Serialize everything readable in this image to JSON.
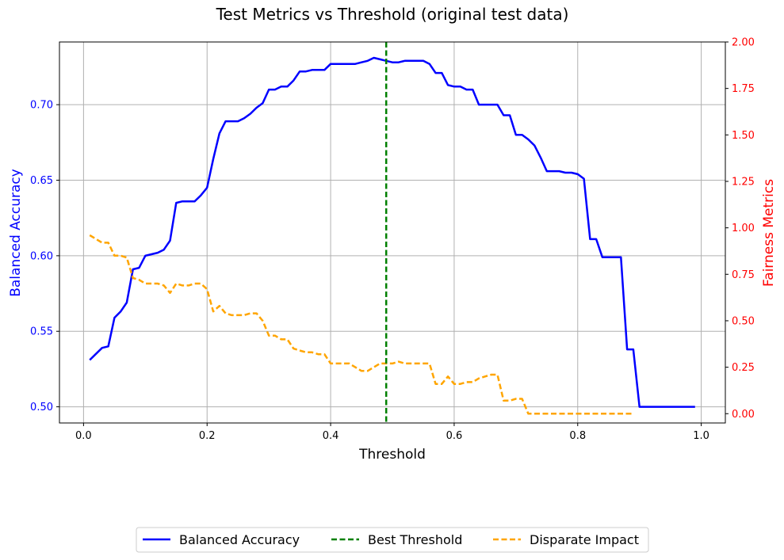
{
  "chart_data": {
    "type": "line",
    "title": "Test Metrics vs Threshold (original test data)",
    "xlabel": "Threshold",
    "ylabel_left": "Balanced Accuracy",
    "ylabel_right": "Fairness Metrics",
    "xlim": [
      -0.039,
      1.039
    ],
    "ylim_left": [
      0.4893,
      0.7415
    ],
    "ylim_right": [
      -0.05,
      2.0
    ],
    "x_ticks": [
      "0.0",
      "0.2",
      "0.4",
      "0.6",
      "0.8",
      "1.0"
    ],
    "y_left_ticks": [
      "0.50",
      "0.55",
      "0.60",
      "0.65",
      "0.70"
    ],
    "y_right_ticks": [
      "0.00",
      "0.25",
      "0.50",
      "0.75",
      "1.00",
      "1.25",
      "1.50",
      "1.75",
      "2.00"
    ],
    "grid": true,
    "legend_position": "bottom-center",
    "colors": {
      "balanced_accuracy": "#0000ff",
      "best_threshold": "#008000",
      "disparate_impact": "#ffa500",
      "right_axis": "#ff0000"
    },
    "best_threshold": 0.49,
    "series": [
      {
        "name": "Balanced Accuracy",
        "axis": "left",
        "style": "solid",
        "x": [
          0.01,
          0.02,
          0.03,
          0.04,
          0.05,
          0.06,
          0.07,
          0.08,
          0.09,
          0.1,
          0.11,
          0.12,
          0.13,
          0.14,
          0.15,
          0.16,
          0.17,
          0.18,
          0.19,
          0.2,
          0.21,
          0.22,
          0.23,
          0.24,
          0.25,
          0.26,
          0.27,
          0.28,
          0.29,
          0.3,
          0.31,
          0.32,
          0.33,
          0.34,
          0.35,
          0.36,
          0.37,
          0.38,
          0.39,
          0.4,
          0.41,
          0.42,
          0.43,
          0.44,
          0.45,
          0.46,
          0.47,
          0.48,
          0.49,
          0.5,
          0.51,
          0.52,
          0.53,
          0.54,
          0.55,
          0.56,
          0.57,
          0.58,
          0.59,
          0.6,
          0.61,
          0.62,
          0.63,
          0.64,
          0.65,
          0.66,
          0.67,
          0.68,
          0.69,
          0.7,
          0.71,
          0.72,
          0.73,
          0.74,
          0.75,
          0.76,
          0.77,
          0.78,
          0.79,
          0.8,
          0.81,
          0.82,
          0.83,
          0.84,
          0.85,
          0.86,
          0.87,
          0.88,
          0.89,
          0.9,
          0.91,
          0.92,
          0.93,
          0.94,
          0.95,
          0.96,
          0.97,
          0.98,
          0.99
        ],
        "values": [
          0.531,
          0.535,
          0.539,
          0.54,
          0.559,
          0.563,
          0.569,
          0.591,
          0.592,
          0.6,
          0.601,
          0.602,
          0.604,
          0.61,
          0.635,
          0.636,
          0.636,
          0.636,
          0.64,
          0.645,
          0.664,
          0.681,
          0.689,
          0.689,
          0.689,
          0.691,
          0.694,
          0.698,
          0.701,
          0.71,
          0.71,
          0.712,
          0.712,
          0.716,
          0.722,
          0.722,
          0.723,
          0.723,
          0.723,
          0.727,
          0.727,
          0.727,
          0.727,
          0.727,
          0.728,
          0.729,
          0.731,
          0.73,
          0.729,
          0.728,
          0.728,
          0.729,
          0.729,
          0.729,
          0.729,
          0.727,
          0.721,
          0.721,
          0.713,
          0.712,
          0.712,
          0.71,
          0.71,
          0.7,
          0.7,
          0.7,
          0.7,
          0.693,
          0.693,
          0.68,
          0.68,
          0.677,
          0.673,
          0.665,
          0.656,
          0.656,
          0.656,
          0.655,
          0.655,
          0.654,
          0.651,
          0.611,
          0.611,
          0.599,
          0.599,
          0.599,
          0.599,
          0.538,
          0.538,
          0.5,
          0.5,
          0.5,
          0.5,
          0.5,
          0.5,
          0.5,
          0.5,
          0.5,
          0.5
        ]
      },
      {
        "name": "Best Threshold",
        "axis": "left",
        "style": "dashed-vertical",
        "x": [
          0.49
        ]
      },
      {
        "name": "Disparate Impact",
        "axis": "right",
        "style": "dashed",
        "x": [
          0.01,
          0.02,
          0.03,
          0.04,
          0.05,
          0.06,
          0.07,
          0.08,
          0.09,
          0.1,
          0.11,
          0.12,
          0.13,
          0.14,
          0.15,
          0.16,
          0.17,
          0.18,
          0.19,
          0.2,
          0.21,
          0.22,
          0.23,
          0.24,
          0.25,
          0.26,
          0.27,
          0.28,
          0.29,
          0.3,
          0.31,
          0.32,
          0.33,
          0.34,
          0.35,
          0.36,
          0.37,
          0.38,
          0.39,
          0.4,
          0.41,
          0.42,
          0.43,
          0.44,
          0.45,
          0.46,
          0.47,
          0.48,
          0.49,
          0.5,
          0.51,
          0.52,
          0.53,
          0.54,
          0.55,
          0.56,
          0.57,
          0.58,
          0.59,
          0.6,
          0.61,
          0.62,
          0.63,
          0.64,
          0.65,
          0.66,
          0.67,
          0.68,
          0.69,
          0.7,
          0.71,
          0.72,
          0.73,
          0.74,
          0.75,
          0.76,
          0.77,
          0.78,
          0.79,
          0.8,
          0.81,
          0.82,
          0.83,
          0.84,
          0.85,
          0.86,
          0.87,
          0.88,
          0.89
        ],
        "values": [
          0.96,
          0.94,
          0.92,
          0.92,
          0.85,
          0.85,
          0.84,
          0.73,
          0.72,
          0.7,
          0.7,
          0.7,
          0.69,
          0.65,
          0.7,
          0.69,
          0.69,
          0.7,
          0.7,
          0.67,
          0.55,
          0.58,
          0.54,
          0.53,
          0.53,
          0.53,
          0.54,
          0.54,
          0.5,
          0.42,
          0.42,
          0.4,
          0.4,
          0.35,
          0.34,
          0.33,
          0.33,
          0.32,
          0.32,
          0.27,
          0.27,
          0.27,
          0.27,
          0.25,
          0.23,
          0.23,
          0.25,
          0.27,
          0.27,
          0.27,
          0.28,
          0.27,
          0.27,
          0.27,
          0.27,
          0.27,
          0.16,
          0.16,
          0.2,
          0.16,
          0.16,
          0.17,
          0.17,
          0.19,
          0.2,
          0.21,
          0.21,
          0.07,
          0.07,
          0.08,
          0.08,
          0.0,
          0.0,
          0.0,
          0.0,
          0.0,
          0.0,
          0.0,
          0.0,
          0.0,
          0.0,
          0.0,
          0.0,
          0.0,
          0.0,
          0.0,
          0.0,
          0.0,
          0.0
        ]
      }
    ]
  }
}
